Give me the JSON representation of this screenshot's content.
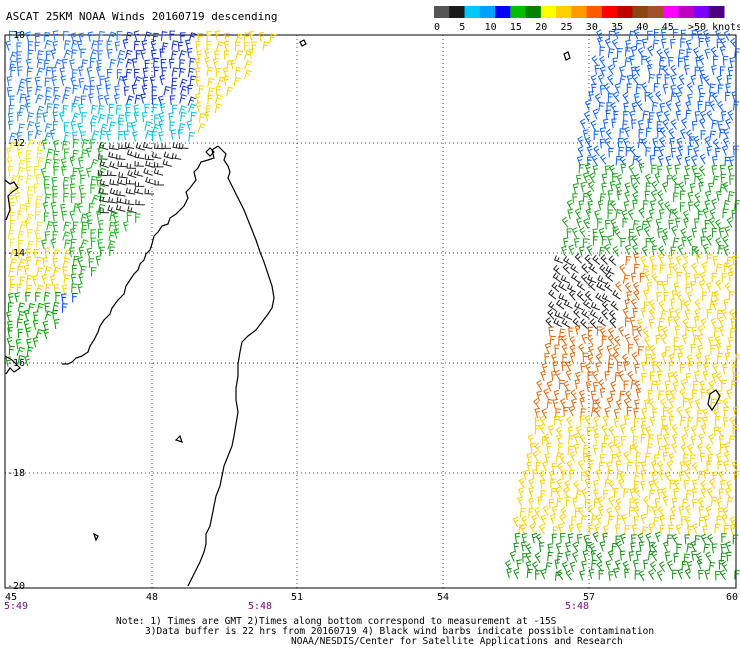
{
  "title": "ASCAT 25KM NOAA Winds 20160719 descending",
  "legend": {
    "unit_label": ">50 knots",
    "tick_labels": [
      "0",
      "5",
      "10",
      "15",
      "20",
      "25",
      "30",
      "35",
      "40",
      "45"
    ],
    "colors": [
      "#555555",
      "#1a1a1a",
      "#00c8ff",
      "#00a0ff",
      "#0000ff",
      "#00c000",
      "#008000",
      "#ffff00",
      "#ffd000",
      "#ff9a00",
      "#ff5a00",
      "#ff0000",
      "#c00000",
      "#8b4513",
      "#a0522d",
      "#ff00ff",
      "#c000c0",
      "#8000ff",
      "#4b0082"
    ]
  },
  "axes": {
    "lat_labels": [
      "-10",
      "-12",
      "-14",
      "-16",
      "-18",
      "-20"
    ],
    "lon_labels": [
      "45",
      "48",
      "51",
      "54",
      "57",
      "60"
    ]
  },
  "time_labels": [
    "5:49",
    "5:48",
    "5:48"
  ],
  "notes": [
    "Note: 1) Times are GMT 2)Times along bottom correspond to measurement at -15S",
    "3)Data buffer is 22 hrs from 20160719 4) Black wind barbs indicate possible contamination",
    "NOAA/NESDIS/Center for Satellite Applications and Research"
  ],
  "swaths": [
    {
      "name": "west-swath",
      "lon_range": [
        45,
        50
      ],
      "lat_range": [
        -10,
        -16.2
      ]
    },
    {
      "name": "east-swath",
      "lon_range": [
        56.3,
        60
      ],
      "lat_range": [
        -10,
        -20
      ]
    }
  ]
}
